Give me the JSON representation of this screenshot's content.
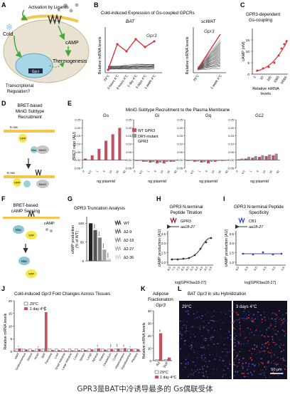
{
  "colors": {
    "gs": "#c0535f",
    "wt": "#c0535f",
    "drym": "#8f8f8f",
    "grey_line": "#555555",
    "blue": "#3a49b8",
    "red_line": "#d8323a",
    "membrane": "#f5c64e",
    "cell": "#e9e2d2",
    "nucleus": "#a9d6e7",
    "cold": "#8fc3ea",
    "green_arrow": "#44aa3e",
    "panel_bg": "#ffffff"
  },
  "panelA": {
    "letter": "A",
    "activation": "Activation by Ligands",
    "cold": "Cold",
    "camp": "cAMP",
    "thermo": "Thermogenesis",
    "gpcr": "Gpcr",
    "transcr1": "Transcriptional",
    "transcr2": "Regulation?"
  },
  "panelB": {
    "letter": "B",
    "title": "Cold-induced Expression of Gs-coupled GPCRs",
    "sub_bat": "BAT",
    "sub_scwat": "scWAT",
    "ylabel1": "Relative mRNA levels",
    "ylabel2": "Relative mRNA levels",
    "gene1": "Gpr3",
    "gene2": "Gpr3",
    "bat_x": [
      "29°C",
      "3 hours 4°C",
      "8 hours 4°C",
      "1 day 4°C",
      "3 days 4°C",
      "1 week 4°C"
    ],
    "wat_x": [
      "29°C",
      "1 week 4°C"
    ]
  },
  "panelC": {
    "letter": "C",
    "title1": "GPR3-dependent",
    "title2": "Gs-coupling",
    "ylabel": "cAMP (nM)",
    "xlabel1": "Relative mRNA",
    "xlabel2": "levels",
    "xticks": [
      "1",
      "10",
      "100",
      "1000",
      "10000"
    ],
    "yticks": [
      "0",
      "5",
      "10",
      "15"
    ]
  },
  "panelD": {
    "letter": "D",
    "title1": "BRET-based",
    "title2": "MiniG Subtype",
    "title3": "Recruitment",
    "kras": "K-ras",
    "yfp": "YFP",
    "nluc": "Nluc",
    "minig": "MiniG"
  },
  "panelE": {
    "letter": "E",
    "title": "MiniG Subtype Recruitment to the Plasma Membrane",
    "ylabel": "BRET ratio (AU)",
    "xlabel": "ng plasmid",
    "legend_wt": "WT GPR3",
    "legend_dry1": "DRY-mutant",
    "legend_dry2": "GPR3",
    "yticks": [
      "-0.05",
      "0.00",
      "0.05",
      "0.10",
      "0.15",
      "0.20",
      "0.25"
    ],
    "xticks": [
      "0",
      "0.5",
      "1",
      "5",
      "10",
      "25",
      "50"
    ],
    "subpanels": [
      {
        "title": "Gs",
        "wt": [
          0.01,
          0.03,
          0.07,
          0.12,
          0.16,
          0.2
        ],
        "dry": []
      },
      {
        "title": "Gi",
        "wt": [
          -0.005,
          -0.01,
          -0.015,
          -0.02,
          -0.02,
          -0.01
        ],
        "dry": [
          -0.005,
          -0.01,
          -0.012,
          -0.015,
          -0.01,
          -0.01
        ]
      },
      {
        "title": "Gq",
        "wt": [
          -0.005,
          -0.01,
          -0.015,
          -0.02,
          -0.01,
          -0.005
        ],
        "dry": [
          -0.005,
          -0.008,
          -0.012,
          -0.01,
          -0.005,
          -0.005
        ]
      },
      {
        "title": "G12",
        "wt": [
          0.005,
          0.01,
          0.015,
          0.02,
          0.025,
          0.03
        ],
        "dry": [
          0.01,
          0.02,
          0.025,
          0.03,
          0.035,
          0.04
        ]
      }
    ]
  },
  "panelF": {
    "letter": "F",
    "title1": "BRET-based",
    "title2": "cAMP Sensing",
    "camp": "cAMP",
    "nluc": "Nluc",
    "yfp": "YFP"
  },
  "panelG": {
    "letter": "G",
    "title": "GPR3 Truncation Analysis",
    "ylabel": "cAMP production",
    "ylabel2": "(% of WT)",
    "yticks": [
      "0",
      "50",
      "100"
    ],
    "labels": [
      "WT",
      "Δ2-9",
      "Δ2-18",
      "Δ2-27",
      "Δ2-36"
    ],
    "values": [
      100,
      82,
      62,
      30,
      5
    ],
    "stars": [
      "",
      "****",
      "****",
      "****",
      "****"
    ]
  },
  "panelH": {
    "letter": "H",
    "title1": "GPR3 N-terminal",
    "title2": "Peptide Titration",
    "legend1": "GPR3",
    "legend2": "aa18-27",
    "ylabel": "cAMP production (AU)",
    "xlabel": "log[GPR3aa18-27]",
    "xticks": [
      "-8.0",
      "-7.5",
      "-7.0",
      "-6.5",
      "-6.0",
      "-5.5",
      "-5.0",
      "-4.5",
      "-4.0",
      "-3.5"
    ],
    "yticks": [
      "1.0",
      "1.5",
      "2.0",
      "2.5"
    ]
  },
  "panelI": {
    "letter": "I",
    "title1": "GPR3 N-terminal Peptide",
    "title2": "Specificity",
    "legend1": "CB1",
    "legend2": "aa18-27",
    "ylabel": "cAMP production (AU)",
    "xlabel": "log[GPR3aa18-27]",
    "xticks": [
      "-6.0",
      "-5.5",
      "-5.0",
      "-4.5",
      "-4.0",
      "-3.5"
    ],
    "yticks": [
      "1.0",
      "1.5",
      "2.0",
      "2.5"
    ]
  },
  "panelJ": {
    "letter": "J",
    "title_pre": "Cold-induced ",
    "title_gene": "Gpr3",
    "title_post": " Fold Changes Across Tissues",
    "ylabel": "Relative mRNA levels",
    "legend1": "29°C",
    "legend2": "1 day 4°C",
    "yticks": [
      "0",
      "5",
      "10",
      "15",
      "20"
    ],
    "tissues": [
      "iWAT",
      "Gastrocnemius",
      "Soleus",
      "Heart",
      "BAT",
      "Pancreas",
      "Liver",
      "Small Intestine",
      "Large Intestine",
      "Colon",
      "Spleen",
      "Lungs",
      "Adrenal",
      "Kidney",
      "Cerebellum",
      "Cortex",
      "Hippocampus",
      "Hypothalamus",
      "Pituitary"
    ],
    "cold_values": [
      1.2,
      0.8,
      0.5,
      1.0,
      15.5,
      0.6,
      0.5,
      0.4,
      0.4,
      0.5,
      0.6,
      0.8,
      1.2,
      0.7,
      1.0,
      1.1,
      1.3,
      1.0,
      0.9
    ],
    "stars": [
      "*",
      "",
      "",
      "*",
      "****",
      "",
      "",
      "",
      "",
      "",
      "",
      "",
      "**",
      "",
      "***",
      "***",
      "**",
      "*",
      ""
    ]
  },
  "panelK": {
    "letter": "K",
    "title1": "Adipose",
    "title2": "Fractionation",
    "title3": "Gpr3",
    "ylabel": "Relative mRNA levels",
    "yticks": [
      "0",
      "10",
      "20",
      "30",
      "40"
    ],
    "xticks": [
      "Ad",
      "SVF"
    ],
    "legend1": "29°C",
    "legend2": "1 day 4°C",
    "values": [
      22,
      2.5
    ],
    "stars": [
      "**",
      ""
    ]
  },
  "panelL": {
    "letter": "L",
    "title_pre": "BAT ",
    "title_gene": "Gpr3",
    "title_post": " in situ Hybridization",
    "label_left": "29°C",
    "label_right": "3 days 4°C",
    "scale": "50 μm"
  },
  "caption": "GPR3是BAT中冷诱导最多的 Gs偶联受体"
}
